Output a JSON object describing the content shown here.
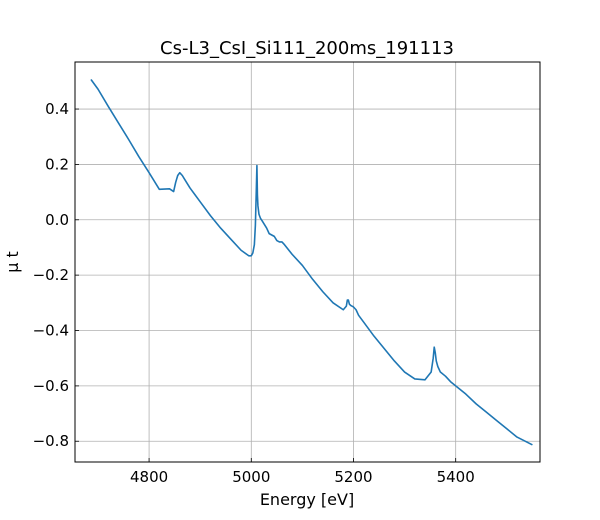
{
  "chart_data": {
    "type": "line",
    "title": "Cs-L3_CsI_Si111_200ms_191113",
    "xlabel": "Energy [eV]",
    "ylabel": "μ t",
    "xlim": [
      4655,
      5565
    ],
    "ylim": [
      -0.875,
      0.57
    ],
    "grid": true,
    "xticks": [
      4800,
      5000,
      5200,
      5400
    ],
    "xtick_labels": [
      "4800",
      "5000",
      "5200",
      "5400"
    ],
    "yticks": [
      0.4,
      0.2,
      0.0,
      -0.2,
      -0.4,
      -0.6,
      -0.8
    ],
    "ytick_labels": [
      "0.4",
      "0.2",
      "0.0",
      "−0.2",
      "−0.4",
      "−0.6",
      "−0.8"
    ],
    "series": [
      {
        "name": "μ t",
        "color": "#1f77b4",
        "x": [
          4687,
          4700,
          4720,
          4740,
          4760,
          4780,
          4800,
          4820,
          4840,
          4848,
          4852,
          4856,
          4860,
          4865,
          4870,
          4880,
          4890,
          4900,
          4920,
          4940,
          4960,
          4980,
          4995,
          5000,
          5003,
          5006,
          5008,
          5010,
          5011,
          5012,
          5013,
          5015,
          5018,
          5020,
          5025,
          5030,
          5035,
          5040,
          5045,
          5050,
          5055,
          5060,
          5065,
          5080,
          5100,
          5120,
          5140,
          5160,
          5180,
          5186,
          5188,
          5190,
          5192,
          5195,
          5200,
          5205,
          5210,
          5220,
          5240,
          5260,
          5280,
          5300,
          5320,
          5340,
          5352,
          5356,
          5358,
          5360,
          5362,
          5365,
          5370,
          5380,
          5390,
          5400,
          5420,
          5440,
          5460,
          5480,
          5500,
          5520,
          5549
        ],
        "y": [
          0.505,
          0.472,
          0.41,
          0.35,
          0.29,
          0.228,
          0.17,
          0.11,
          0.112,
          0.102,
          0.135,
          0.16,
          0.17,
          0.16,
          0.145,
          0.115,
          0.09,
          0.065,
          0.015,
          -0.03,
          -0.07,
          -0.11,
          -0.13,
          -0.13,
          -0.12,
          -0.09,
          -0.02,
          0.12,
          0.196,
          0.09,
          0.05,
          0.02,
          0.005,
          0.0,
          -0.015,
          -0.03,
          -0.05,
          -0.055,
          -0.06,
          -0.075,
          -0.08,
          -0.08,
          -0.09,
          -0.125,
          -0.165,
          -0.215,
          -0.26,
          -0.3,
          -0.325,
          -0.312,
          -0.29,
          -0.29,
          -0.305,
          -0.31,
          -0.315,
          -0.325,
          -0.345,
          -0.37,
          -0.42,
          -0.465,
          -0.51,
          -0.55,
          -0.575,
          -0.578,
          -0.55,
          -0.5,
          -0.46,
          -0.48,
          -0.51,
          -0.53,
          -0.55,
          -0.565,
          -0.585,
          -0.6,
          -0.63,
          -0.665,
          -0.695,
          -0.725,
          -0.755,
          -0.785,
          -0.812
        ]
      }
    ]
  }
}
